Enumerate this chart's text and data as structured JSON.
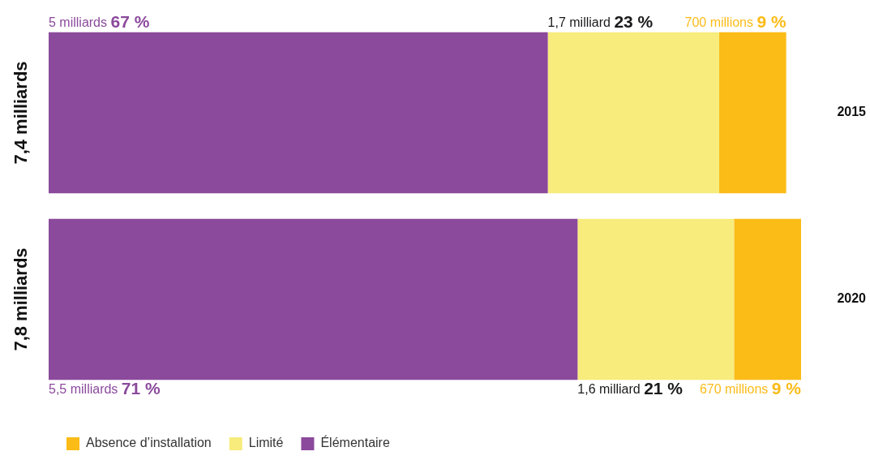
{
  "chart_data": {
    "type": "bar",
    "orientation": "horizontal",
    "stacked": true,
    "categories": [
      "2015",
      "2020"
    ],
    "series": [
      {
        "name": "Élémentaire",
        "color": "#8b4a9c",
        "values": [
          67,
          71
        ],
        "value_labels": [
          "67 %",
          "71 %"
        ]
      },
      {
        "name": "Limité",
        "color": "#f7ec7c",
        "values": [
          23,
          21
        ],
        "value_labels": [
          "23 %",
          "21 %"
        ]
      },
      {
        "name": "Absence d’installation",
        "color": "#fbbc18",
        "values": [
          9,
          9
        ],
        "value_labels": [
          "9 %",
          "9 %"
        ]
      }
    ],
    "annotations": [
      "7,4 milliards",
      "7,8 milliards",
      "5 milliards",
      "1,7 milliard",
      "700 millions",
      "5,5 milliards",
      "1,6 milliard",
      "670 millions"
    ],
    "legend": "bottom left"
  }
}
